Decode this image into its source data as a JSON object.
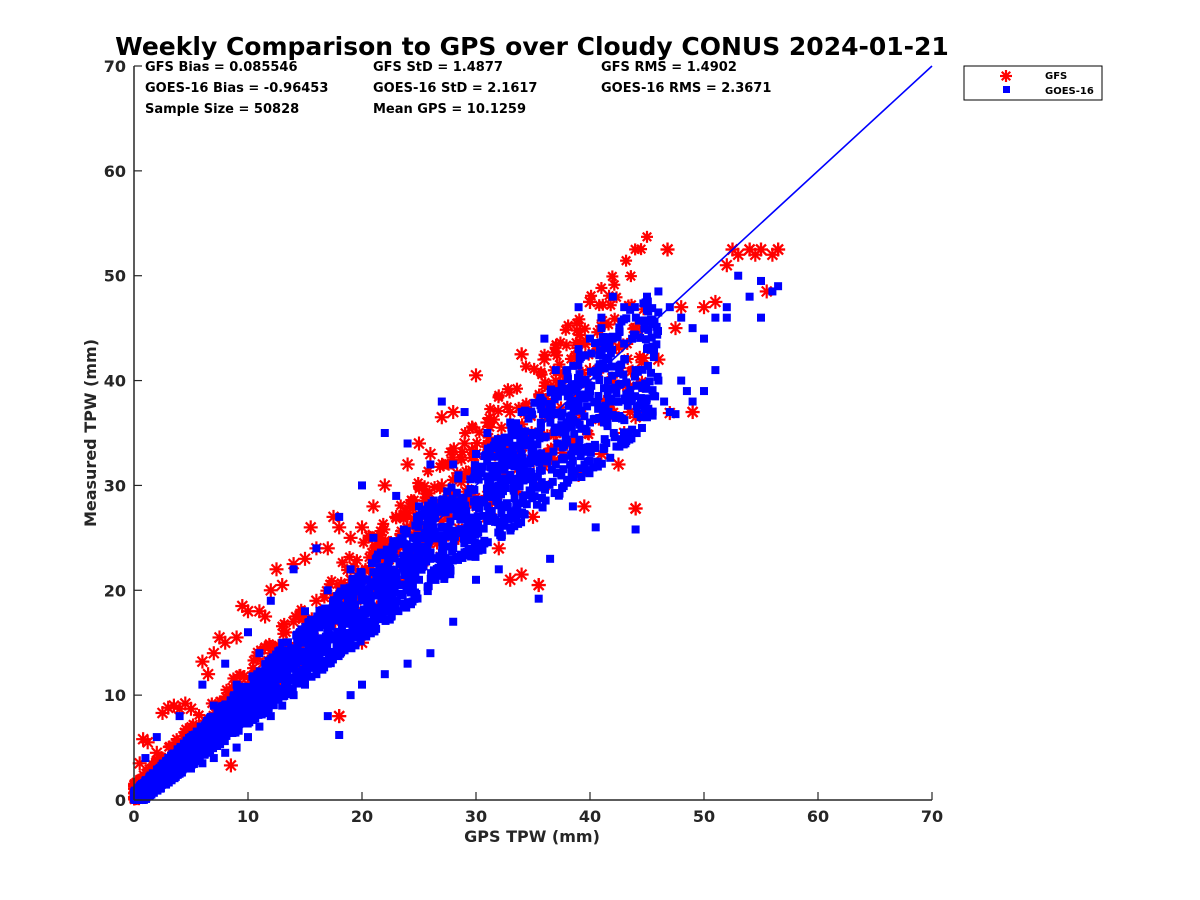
{
  "chart_data": {
    "type": "scatter",
    "title": "Weekly Comparison to GPS over Cloudy CONUS 2024-01-21",
    "xlabel": "GPS TPW (mm)",
    "ylabel": "Measured TPW (mm)",
    "xlim": [
      0,
      70
    ],
    "ylim": [
      0,
      70
    ],
    "xticks": [
      "0",
      "10",
      "20",
      "30",
      "40",
      "50",
      "60",
      "70"
    ],
    "yticks": [
      "0",
      "10",
      "20",
      "30",
      "40",
      "50",
      "60",
      "70"
    ],
    "grid": false,
    "legend_position": "outside-top-right",
    "stats": [
      "GFS Bias = 0.085546",
      "GFS StD = 1.4877",
      "GFS RMS = 1.4902",
      "GOES-16 Bias = -0.96453",
      "GOES-16 StD = 2.1617",
      "GOES-16 RMS = 2.3671",
      "Sample Size = 50828",
      "Mean GPS = 10.1259"
    ],
    "reference_line": {
      "x": [
        0,
        70
      ],
      "y": [
        0,
        70
      ],
      "color": "#0000ff"
    },
    "series": [
      {
        "name": "GFS",
        "marker": "asterisk",
        "color": "#ff0000",
        "points": [
          [
            0.2,
            1.5
          ],
          [
            0.5,
            3.5
          ],
          [
            0.8,
            5.8
          ],
          [
            1.2,
            5.5
          ],
          [
            1.5,
            2.2
          ],
          [
            2,
            4.5
          ],
          [
            2.5,
            8.3
          ],
          [
            3,
            8.8
          ],
          [
            3.5,
            9
          ],
          [
            4,
            8.7
          ],
          [
            4.5,
            9.2
          ],
          [
            5,
            8.7
          ],
          [
            4,
            3
          ],
          [
            6,
            13.2
          ],
          [
            6.5,
            12
          ],
          [
            7,
            14
          ],
          [
            7.5,
            15.5
          ],
          [
            8,
            15
          ],
          [
            8.5,
            3.3
          ],
          [
            9,
            15.5
          ],
          [
            9.5,
            18.5
          ],
          [
            10,
            18
          ],
          [
            11,
            18
          ],
          [
            11.5,
            17.5
          ],
          [
            12,
            20
          ],
          [
            12.5,
            22
          ],
          [
            13,
            20.5
          ],
          [
            14,
            22.5
          ],
          [
            15,
            23
          ],
          [
            15.5,
            26
          ],
          [
            16,
            24
          ],
          [
            17,
            24
          ],
          [
            17.5,
            27
          ],
          [
            18,
            26
          ],
          [
            18,
            8
          ],
          [
            19,
            25
          ],
          [
            20,
            26
          ],
          [
            21,
            28
          ],
          [
            22,
            30
          ],
          [
            23,
            27
          ],
          [
            24,
            32
          ],
          [
            25,
            34
          ],
          [
            26,
            33
          ],
          [
            27,
            36.5
          ],
          [
            28,
            37
          ],
          [
            29,
            34
          ],
          [
            30,
            33
          ],
          [
            31,
            36
          ],
          [
            32,
            24
          ],
          [
            33,
            21
          ],
          [
            34,
            21.5
          ],
          [
            35,
            27
          ],
          [
            35.5,
            20.5
          ],
          [
            36,
            30
          ],
          [
            37,
            35
          ],
          [
            38,
            34
          ],
          [
            39,
            31
          ],
          [
            39.5,
            28
          ],
          [
            40,
            47.5
          ],
          [
            41,
            33
          ],
          [
            42,
            40
          ],
          [
            42.5,
            32
          ],
          [
            43,
            35
          ],
          [
            43.5,
            37
          ],
          [
            44,
            27.8
          ],
          [
            44,
            36.5
          ],
          [
            45,
            37
          ],
          [
            46,
            42
          ],
          [
            46.8,
            52.5
          ],
          [
            47,
            36.9
          ],
          [
            47.5,
            45
          ],
          [
            48,
            47
          ],
          [
            49,
            37
          ],
          [
            50,
            47
          ],
          [
            51,
            47.5
          ],
          [
            52,
            51
          ],
          [
            52.5,
            52.5
          ],
          [
            53,
            52
          ],
          [
            54,
            52.5
          ],
          [
            54.5,
            52
          ],
          [
            55,
            52.5
          ],
          [
            55.5,
            48.5
          ],
          [
            56,
            52
          ],
          [
            56.5,
            52.5
          ],
          [
            30,
            40.5
          ],
          [
            26,
            28
          ],
          [
            22,
            19
          ],
          [
            20,
            15
          ],
          [
            19,
            21
          ],
          [
            24,
            22
          ],
          [
            14,
            17
          ],
          [
            16,
            19
          ],
          [
            12,
            14
          ],
          [
            10,
            11
          ],
          [
            8,
            9
          ],
          [
            6,
            6
          ],
          [
            5,
            5.5
          ],
          [
            3,
            2.8
          ],
          [
            2,
            1.5
          ],
          [
            1,
            1.2
          ],
          [
            28,
            29
          ],
          [
            33,
            37
          ],
          [
            37,
            40
          ],
          [
            40,
            41
          ],
          [
            42,
            43
          ],
          [
            44,
            45
          ],
          [
            36,
            42
          ],
          [
            34,
            42.5
          ],
          [
            27,
            30
          ],
          [
            23,
            24
          ],
          [
            31,
            29
          ],
          [
            25,
            26
          ],
          [
            18,
            18
          ],
          [
            15,
            16
          ],
          [
            13,
            14
          ],
          [
            11,
            12
          ],
          [
            9,
            10
          ],
          [
            7,
            8
          ]
        ]
      },
      {
        "name": "GOES-16",
        "marker": "square",
        "color": "#0000ff",
        "points": [
          [
            45,
            48
          ],
          [
            46,
            48.5
          ],
          [
            47,
            47
          ],
          [
            48,
            46
          ],
          [
            49,
            45
          ],
          [
            50,
            44
          ],
          [
            51,
            46
          ],
          [
            52,
            47
          ],
          [
            53,
            50
          ],
          [
            54,
            48
          ],
          [
            55,
            49.5
          ],
          [
            56,
            48.5
          ],
          [
            56.5,
            49
          ],
          [
            52,
            46
          ],
          [
            55,
            46
          ],
          [
            50,
            39
          ],
          [
            51,
            41
          ],
          [
            49,
            38
          ],
          [
            48,
            40
          ],
          [
            47,
            37
          ],
          [
            46,
            40
          ],
          [
            45,
            43
          ],
          [
            44,
            41
          ],
          [
            43,
            42
          ],
          [
            42,
            44
          ],
          [
            41,
            46
          ],
          [
            40,
            44
          ],
          [
            39,
            43
          ],
          [
            38,
            41
          ],
          [
            37,
            39
          ],
          [
            36,
            37
          ],
          [
            35,
            35
          ],
          [
            34,
            33
          ],
          [
            33,
            31
          ],
          [
            32,
            30
          ],
          [
            31,
            28
          ],
          [
            30,
            26
          ],
          [
            29,
            25
          ],
          [
            28,
            24
          ],
          [
            27,
            22
          ],
          [
            26,
            23
          ],
          [
            25,
            21
          ],
          [
            24,
            20
          ],
          [
            23,
            19
          ],
          [
            22,
            18
          ],
          [
            21,
            17
          ],
          [
            20,
            16
          ],
          [
            19,
            15
          ],
          [
            18,
            14
          ],
          [
            17,
            13
          ],
          [
            16,
            12
          ],
          [
            15,
            11
          ],
          [
            14,
            10
          ],
          [
            13,
            9
          ],
          [
            12,
            8
          ],
          [
            11,
            7
          ],
          [
            10,
            6
          ],
          [
            9,
            5
          ],
          [
            8,
            4.5
          ],
          [
            7,
            4
          ],
          [
            6,
            3.5
          ],
          [
            5,
            3
          ],
          [
            4,
            2.5
          ],
          [
            3,
            2
          ],
          [
            2,
            1.5
          ],
          [
            1,
            1
          ],
          [
            0.5,
            0.8
          ],
          [
            18,
            6.2
          ],
          [
            35.5,
            19.2
          ],
          [
            36.5,
            23
          ],
          [
            38.5,
            28
          ],
          [
            40.5,
            26
          ],
          [
            44,
            25.8
          ],
          [
            45,
            36.5
          ],
          [
            46.5,
            38
          ],
          [
            48.5,
            39
          ],
          [
            47.5,
            36.8
          ],
          [
            30,
            33
          ],
          [
            28,
            32
          ],
          [
            26,
            32
          ],
          [
            24,
            34
          ],
          [
            22,
            35
          ],
          [
            20,
            30
          ],
          [
            18,
            27
          ],
          [
            16,
            24
          ],
          [
            14,
            22
          ],
          [
            12,
            19
          ],
          [
            10,
            16
          ],
          [
            8,
            13
          ],
          [
            6,
            11
          ],
          [
            4,
            8
          ],
          [
            2,
            6
          ],
          [
            1,
            4
          ],
          [
            39,
            47
          ],
          [
            41,
            45
          ],
          [
            43,
            47
          ],
          [
            42,
            48
          ],
          [
            33,
            36
          ],
          [
            31,
            35
          ],
          [
            29,
            37
          ],
          [
            27,
            38
          ],
          [
            34,
            37
          ],
          [
            37,
            41
          ],
          [
            36,
            44
          ],
          [
            39,
            40
          ],
          [
            40,
            36
          ],
          [
            25,
            28
          ],
          [
            23,
            29
          ],
          [
            21,
            25
          ],
          [
            19,
            22
          ],
          [
            17,
            20
          ],
          [
            15,
            18
          ],
          [
            13,
            15
          ],
          [
            11,
            14
          ],
          [
            9,
            11
          ],
          [
            7,
            9
          ],
          [
            5,
            6
          ],
          [
            3,
            4
          ],
          [
            26,
            14
          ],
          [
            24,
            13
          ],
          [
            22,
            12
          ],
          [
            20,
            11
          ],
          [
            19,
            10
          ],
          [
            17,
            8
          ],
          [
            30,
            21
          ],
          [
            32,
            22
          ],
          [
            28,
            17
          ],
          [
            33,
            26
          ],
          [
            35,
            30
          ],
          [
            37,
            32
          ],
          [
            38,
            36
          ],
          [
            40,
            39
          ],
          [
            42,
            38
          ]
        ]
      }
    ]
  }
}
